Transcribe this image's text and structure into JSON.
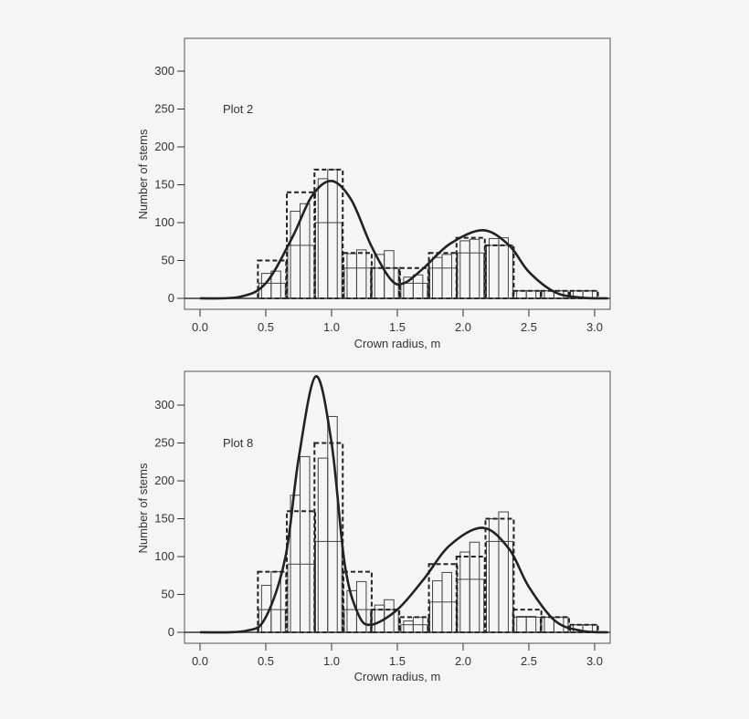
{
  "chart_data": [
    {
      "type": "bar",
      "annotation": "Plot 2",
      "xlabel": "Crown radius, m",
      "ylabel": "Number of stems",
      "xlim": [
        -0.1,
        3.1
      ],
      "ylim": [
        -15,
        340
      ],
      "xticks": [
        "0.0",
        "0.5",
        "1.0",
        "1.5",
        "2.0",
        "2.5",
        "3.0"
      ],
      "yticks": [
        "0",
        "50",
        "100",
        "150",
        "200",
        "250",
        "300"
      ],
      "bin_width": 0.215,
      "bin_starts": [
        0.44,
        0.66,
        0.87,
        1.09,
        1.3,
        1.52,
        1.74,
        1.95,
        2.17,
        2.38,
        2.59,
        2.81
      ],
      "dashed_bars": [
        50,
        140,
        170,
        60,
        40,
        40,
        60,
        80,
        70,
        10,
        10,
        10
      ],
      "wide_bars": [
        20,
        70,
        100,
        40,
        40,
        20,
        40,
        60,
        70,
        10,
        10,
        10
      ],
      "narrow_bars_left": [
        33,
        115,
        158,
        59,
        58,
        28,
        54,
        76,
        79,
        10,
        10,
        10
      ],
      "narrow_bars_right": [
        36,
        125,
        170,
        64,
        63,
        31,
        58,
        78,
        80,
        10,
        10,
        10
      ],
      "curve": {
        "x": [
          0,
          0.3,
          0.5,
          0.7,
          0.85,
          1.0,
          1.15,
          1.3,
          1.45,
          1.55,
          1.7,
          1.9,
          2.15,
          2.35,
          2.5,
          2.7,
          2.9,
          3.1
        ],
        "y": [
          0,
          2,
          20,
          80,
          135,
          155,
          130,
          70,
          25,
          20,
          40,
          72,
          90,
          70,
          35,
          8,
          1,
          0
        ]
      }
    },
    {
      "type": "bar",
      "annotation": "Plot 8",
      "xlabel": "Crown radius, m",
      "ylabel": "Number of stems",
      "xlim": [
        -0.1,
        3.1
      ],
      "ylim": [
        -15,
        345
      ],
      "xticks": [
        "0.0",
        "0.5",
        "1.0",
        "1.5",
        "2.0",
        "2.5",
        "3.0"
      ],
      "yticks": [
        "0",
        "50",
        "100",
        "150",
        "200",
        "250",
        "300"
      ],
      "bin_width": 0.215,
      "bin_starts": [
        0.44,
        0.66,
        0.87,
        1.09,
        1.3,
        1.52,
        1.74,
        1.95,
        2.17,
        2.38,
        2.59,
        2.81
      ],
      "dashed_bars": [
        80,
        160,
        250,
        80,
        30,
        20,
        90,
        100,
        150,
        30,
        20,
        10
      ],
      "wide_bars": [
        30,
        90,
        120,
        30,
        30,
        10,
        40,
        70,
        120,
        20,
        20,
        10
      ],
      "narrow_bars_left": [
        62,
        181,
        230,
        55,
        36,
        15,
        68,
        106,
        150,
        21,
        20,
        10
      ],
      "narrow_bars_right": [
        80,
        232,
        285,
        67,
        43,
        20,
        79,
        119,
        159,
        21,
        20,
        10
      ],
      "curve": {
        "x": [
          0,
          0.35,
          0.5,
          0.65,
          0.75,
          0.88,
          1.0,
          1.1,
          1.2,
          1.3,
          1.5,
          1.7,
          1.9,
          2.15,
          2.35,
          2.5,
          2.7,
          2.9,
          3.1
        ],
        "y": [
          0,
          2,
          20,
          100,
          230,
          338,
          250,
          90,
          25,
          10,
          30,
          70,
          115,
          138,
          110,
          60,
          15,
          2,
          0
        ]
      }
    }
  ]
}
